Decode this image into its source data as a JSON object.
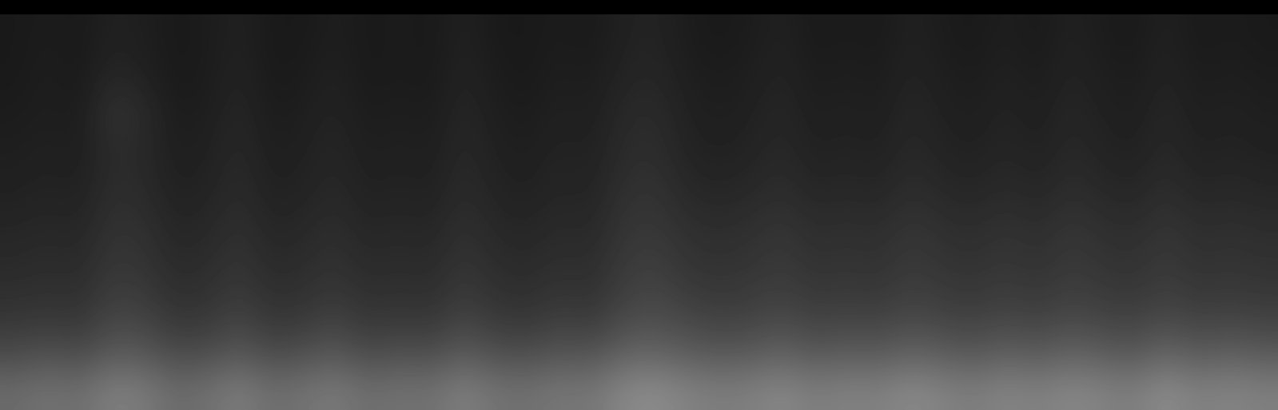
{
  "chart_data": {
    "type": "heatmap",
    "color": "gray",
    "tick_labels": false,
    "zlim": [
      0,
      1
    ],
    "cells": [
      [
        0.1,
        0.11,
        0.1,
        0.13,
        0.12,
        0.1,
        0.11,
        0.13,
        0.1,
        0.1,
        0.12,
        0.1,
        0.11,
        0.1,
        0.13,
        0.1,
        0.1,
        0.11,
        0.1,
        0.13,
        0.14,
        0.11,
        0.1,
        0.11,
        0.13,
        0.1,
        0.11,
        0.1,
        0.13,
        0.11,
        0.1,
        0.12,
        0.1,
        0.13,
        0.11,
        0.1,
        0.13,
        0.1,
        0.11,
        0.1
      ],
      [
        0.1,
        0.12,
        0.1,
        0.15,
        0.13,
        0.1,
        0.11,
        0.14,
        0.1,
        0.11,
        0.13,
        0.1,
        0.11,
        0.1,
        0.14,
        0.11,
        0.1,
        0.12,
        0.11,
        0.14,
        0.15,
        0.12,
        0.11,
        0.12,
        0.14,
        0.11,
        0.12,
        0.11,
        0.14,
        0.12,
        0.11,
        0.13,
        0.11,
        0.14,
        0.12,
        0.11,
        0.14,
        0.11,
        0.12,
        0.11
      ],
      [
        0.11,
        0.12,
        0.11,
        0.2,
        0.17,
        0.11,
        0.12,
        0.15,
        0.11,
        0.12,
        0.14,
        0.11,
        0.12,
        0.11,
        0.15,
        0.12,
        0.11,
        0.13,
        0.12,
        0.16,
        0.17,
        0.13,
        0.12,
        0.13,
        0.15,
        0.12,
        0.13,
        0.12,
        0.15,
        0.13,
        0.12,
        0.14,
        0.12,
        0.15,
        0.13,
        0.12,
        0.15,
        0.12,
        0.13,
        0.12
      ],
      [
        0.12,
        0.13,
        0.12,
        0.17,
        0.16,
        0.12,
        0.13,
        0.16,
        0.12,
        0.13,
        0.15,
        0.12,
        0.13,
        0.12,
        0.16,
        0.13,
        0.12,
        0.14,
        0.13,
        0.17,
        0.18,
        0.14,
        0.13,
        0.14,
        0.16,
        0.13,
        0.14,
        0.13,
        0.16,
        0.14,
        0.13,
        0.15,
        0.13,
        0.16,
        0.14,
        0.13,
        0.16,
        0.13,
        0.14,
        0.13
      ],
      [
        0.13,
        0.14,
        0.13,
        0.18,
        0.17,
        0.13,
        0.14,
        0.17,
        0.13,
        0.14,
        0.16,
        0.13,
        0.14,
        0.13,
        0.17,
        0.14,
        0.13,
        0.15,
        0.14,
        0.19,
        0.2,
        0.16,
        0.15,
        0.16,
        0.18,
        0.15,
        0.16,
        0.15,
        0.18,
        0.16,
        0.15,
        0.17,
        0.15,
        0.18,
        0.16,
        0.15,
        0.18,
        0.15,
        0.16,
        0.15
      ],
      [
        0.15,
        0.16,
        0.15,
        0.2,
        0.19,
        0.15,
        0.16,
        0.19,
        0.15,
        0.16,
        0.18,
        0.15,
        0.16,
        0.15,
        0.19,
        0.16,
        0.15,
        0.17,
        0.16,
        0.21,
        0.22,
        0.19,
        0.18,
        0.19,
        0.21,
        0.18,
        0.19,
        0.18,
        0.21,
        0.19,
        0.18,
        0.2,
        0.18,
        0.21,
        0.19,
        0.18,
        0.21,
        0.18,
        0.19,
        0.18
      ],
      [
        0.17,
        0.18,
        0.17,
        0.22,
        0.21,
        0.17,
        0.18,
        0.21,
        0.17,
        0.18,
        0.2,
        0.17,
        0.18,
        0.17,
        0.21,
        0.18,
        0.17,
        0.19,
        0.18,
        0.23,
        0.25,
        0.21,
        0.2,
        0.21,
        0.23,
        0.2,
        0.21,
        0.2,
        0.23,
        0.21,
        0.2,
        0.22,
        0.2,
        0.23,
        0.21,
        0.2,
        0.23,
        0.2,
        0.21,
        0.2
      ],
      [
        0.2,
        0.21,
        0.2,
        0.26,
        0.25,
        0.2,
        0.21,
        0.25,
        0.2,
        0.21,
        0.24,
        0.2,
        0.21,
        0.2,
        0.25,
        0.21,
        0.2,
        0.23,
        0.21,
        0.27,
        0.29,
        0.26,
        0.24,
        0.25,
        0.27,
        0.24,
        0.25,
        0.24,
        0.27,
        0.25,
        0.24,
        0.26,
        0.24,
        0.27,
        0.25,
        0.24,
        0.27,
        0.24,
        0.25,
        0.24
      ],
      [
        0.28,
        0.3,
        0.28,
        0.34,
        0.33,
        0.28,
        0.29,
        0.33,
        0.28,
        0.3,
        0.33,
        0.28,
        0.3,
        0.29,
        0.34,
        0.3,
        0.29,
        0.32,
        0.31,
        0.37,
        0.38,
        0.35,
        0.33,
        0.34,
        0.37,
        0.33,
        0.35,
        0.34,
        0.37,
        0.35,
        0.33,
        0.36,
        0.34,
        0.37,
        0.35,
        0.33,
        0.38,
        0.34,
        0.36,
        0.34
      ],
      [
        0.42,
        0.45,
        0.43,
        0.5,
        0.48,
        0.42,
        0.44,
        0.49,
        0.43,
        0.45,
        0.48,
        0.43,
        0.45,
        0.44,
        0.5,
        0.45,
        0.44,
        0.47,
        0.46,
        0.53,
        0.55,
        0.51,
        0.49,
        0.5,
        0.53,
        0.49,
        0.51,
        0.5,
        0.54,
        0.51,
        0.49,
        0.52,
        0.5,
        0.53,
        0.51,
        0.49,
        0.55,
        0.5,
        0.52,
        0.5
      ]
    ]
  }
}
